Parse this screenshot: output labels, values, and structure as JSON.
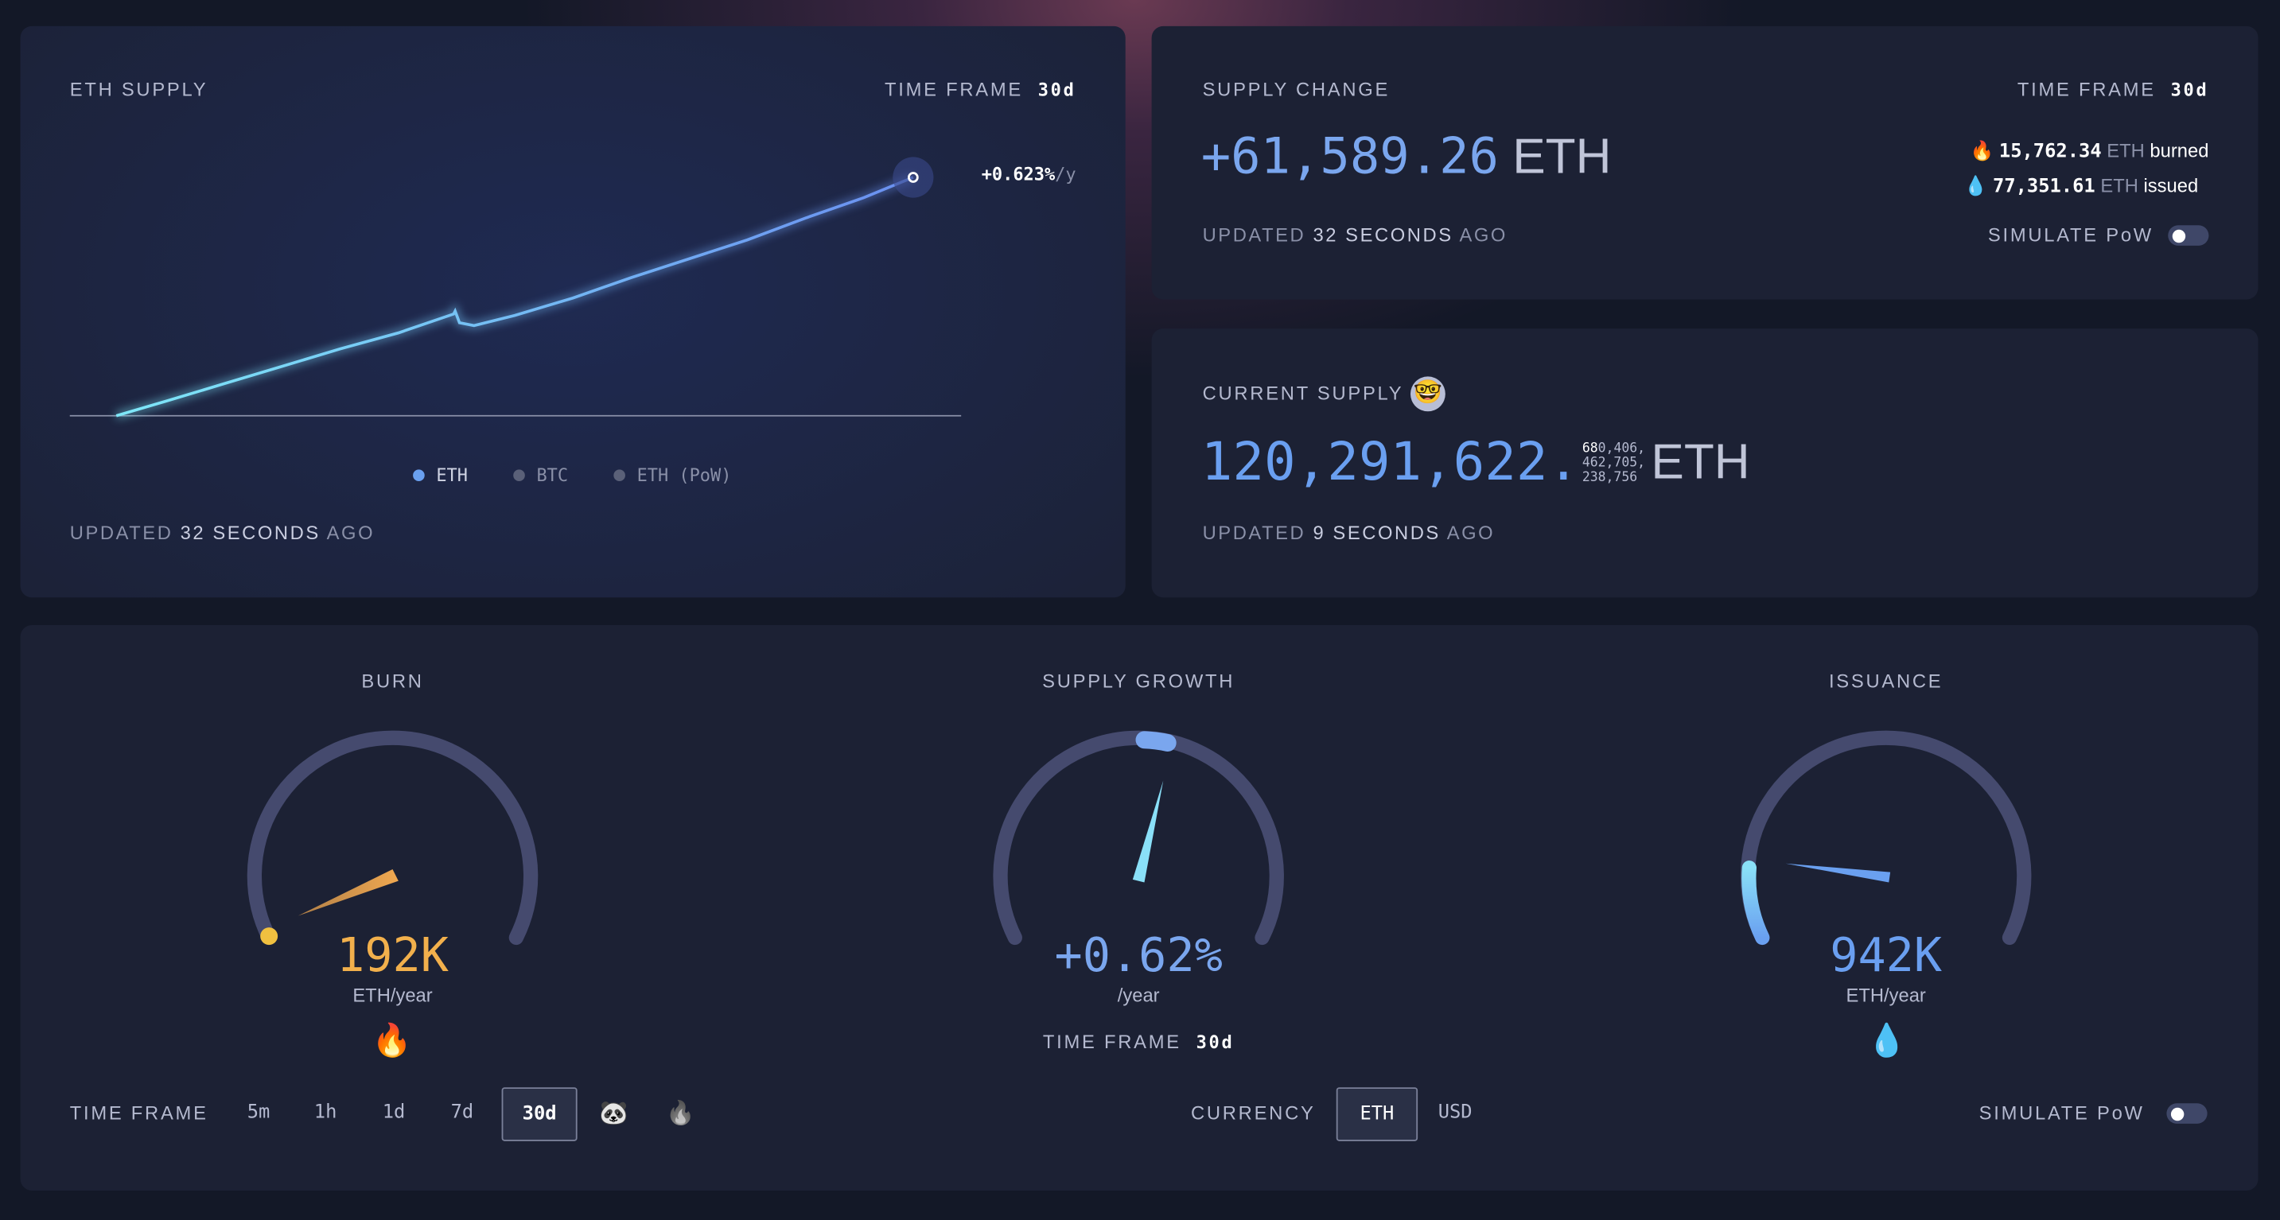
{
  "eth_supply": {
    "title": "ETH SUPPLY",
    "time_frame_label": "TIME FRAME",
    "time_frame_value": "30d",
    "annotation_value": "+0.623%",
    "annotation_unit": "/y",
    "legend": [
      {
        "label": "ETH",
        "color": "#6aa0f0",
        "active": true
      },
      {
        "label": "BTC",
        "color": "#5a6078",
        "active": false
      },
      {
        "label": "ETH (PoW)",
        "color": "#5a6078",
        "active": false
      }
    ],
    "updated_prefix": "UPDATED",
    "updated_value": "32 SECONDS",
    "updated_suffix": "AGO"
  },
  "supply_change": {
    "title": "SUPPLY CHANGE",
    "time_frame_label": "TIME FRAME",
    "time_frame_value": "30d",
    "value": "+61,589.26",
    "unit": "ETH",
    "burned_value": "15,762.34",
    "burned_unit": "ETH",
    "burned_label": "burned",
    "issued_value": "77,351.61",
    "issued_unit": "ETH",
    "issued_label": "issued",
    "updated_prefix": "UPDATED",
    "updated_value": "32 SECONDS",
    "updated_suffix": "AGO",
    "simulate_label": "SIMULATE PoW",
    "simulate_on": false
  },
  "current_supply": {
    "title": "CURRENT SUPPLY",
    "integer": "120,291,622.",
    "decimals_highlight": "68",
    "decimals_line1": "0,406,",
    "decimals_line2": "462,705,",
    "decimals_line3": "238,756",
    "unit": "ETH",
    "updated_prefix": "UPDATED",
    "updated_value": "9 SECONDS",
    "updated_suffix": "AGO"
  },
  "gauges": {
    "burn": {
      "title": "BURN",
      "value": "192K",
      "unit": "ETH/year",
      "color": "#f0a850",
      "fraction": 0.17
    },
    "growth": {
      "title": "SUPPLY GROWTH",
      "value": "+0.62%",
      "unit": "/year",
      "color": "#6aa0f0",
      "time_frame_label": "TIME FRAME",
      "time_frame_value": "30d",
      "fraction": 0.52
    },
    "issuance": {
      "title": "ISSUANCE",
      "value": "942K",
      "unit": "ETH/year",
      "color": "#6aa0f0",
      "fraction": 0.2
    }
  },
  "controls": {
    "time_frame_label": "TIME FRAME",
    "time_frames": [
      "5m",
      "1h",
      "1d",
      "7d",
      "30d"
    ],
    "selected_time_frame": "30d",
    "currency_label": "CURRENCY",
    "currencies": [
      "ETH",
      "USD"
    ],
    "selected_currency": "ETH",
    "simulate_label": "SIMULATE PoW",
    "simulate_on": false
  },
  "colors": {
    "accent": "#6aa0f0",
    "burn": "#f0a850",
    "card": "#1c2134",
    "background": "#131827"
  }
}
